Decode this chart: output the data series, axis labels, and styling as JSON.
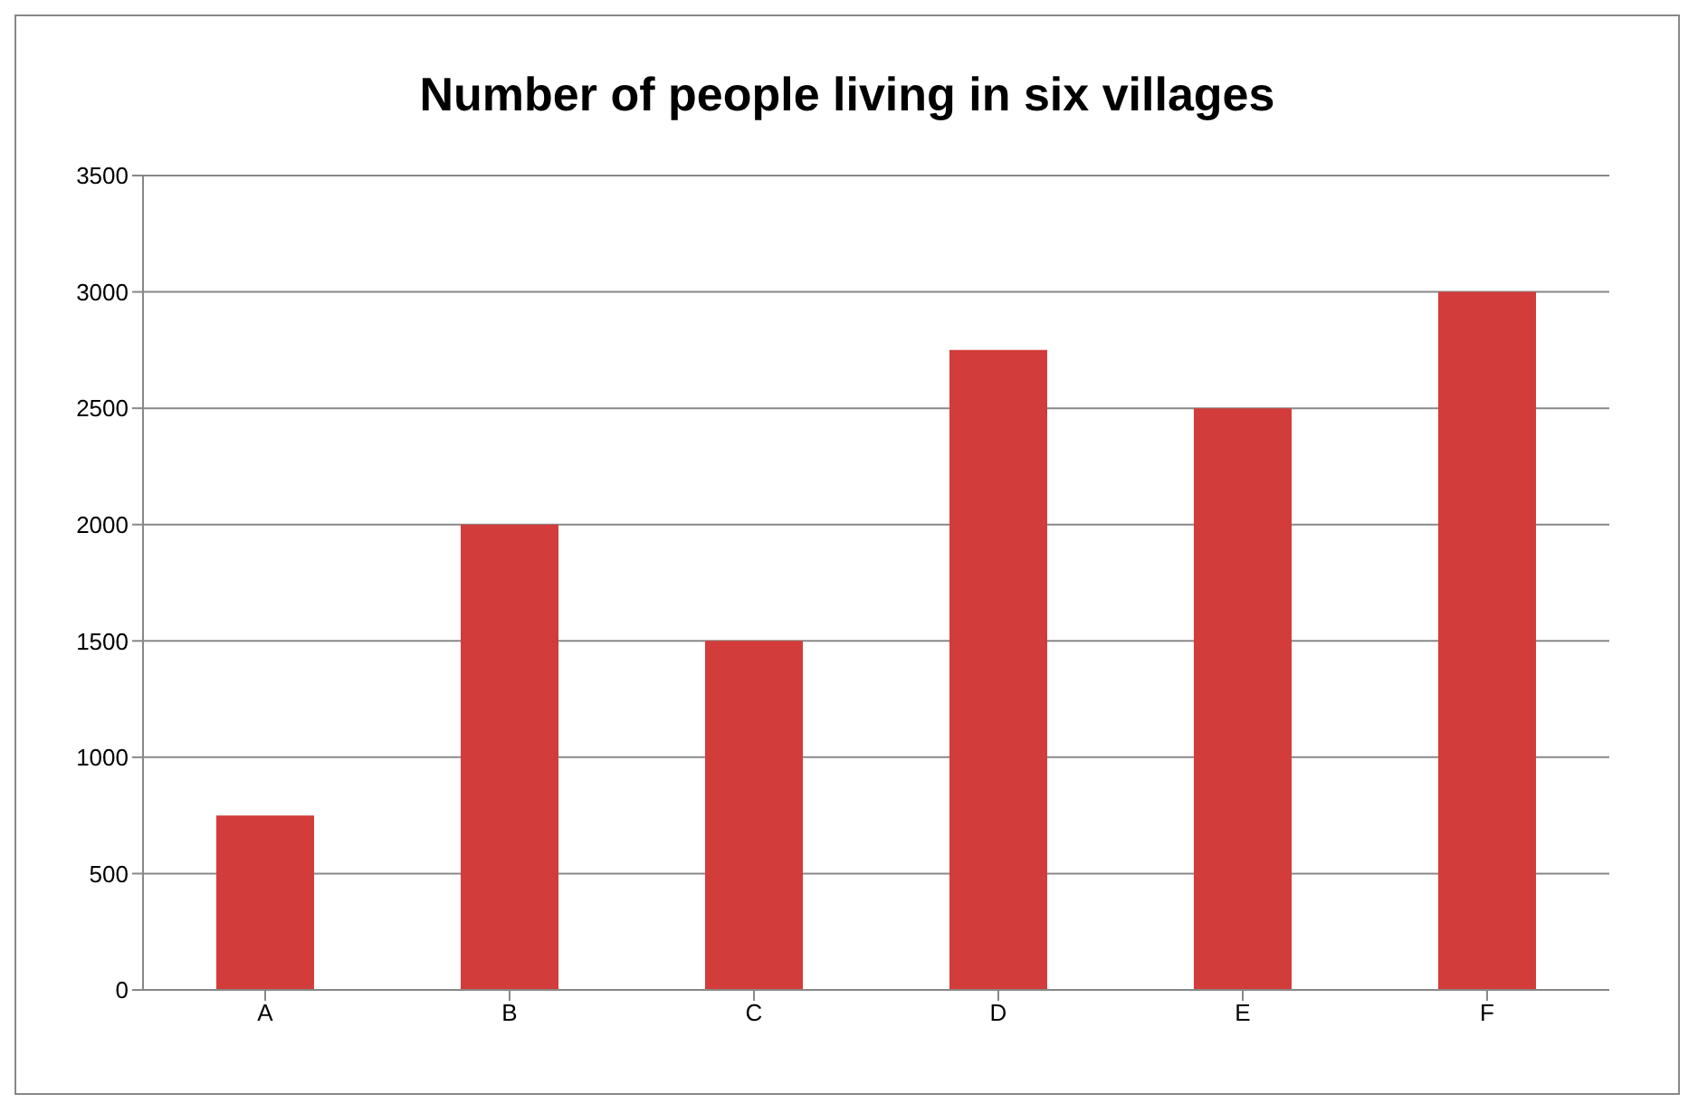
{
  "chart_data": {
    "type": "bar",
    "title": "Number of people living in six villages",
    "categories": [
      "A",
      "B",
      "C",
      "D",
      "E",
      "F"
    ],
    "values": [
      750,
      2000,
      1500,
      2750,
      2500,
      3000
    ],
    "color": "#d23c3a",
    "ylim": [
      0,
      3500
    ],
    "yticks": [
      0,
      500,
      1000,
      1500,
      2000,
      2500,
      3000,
      3500
    ],
    "grid": "y"
  }
}
